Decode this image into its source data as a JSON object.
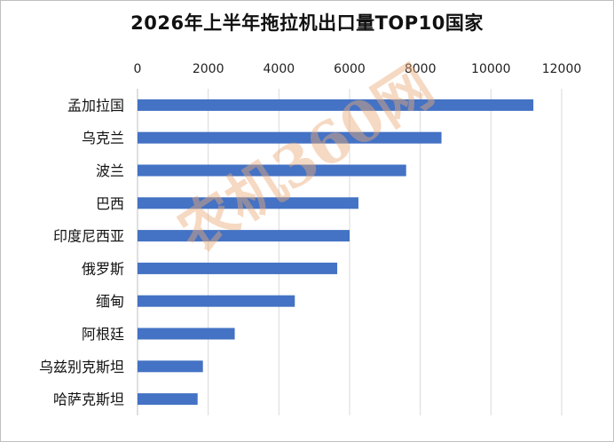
{
  "chart_data": {
    "type": "bar",
    "orientation": "horizontal",
    "title": "2026年上半年拖拉机出口量TOP10国家",
    "xlabel": "",
    "ylabel": "",
    "axis_position": "top",
    "xlim": [
      0,
      12000
    ],
    "ticks": [
      0,
      2000,
      4000,
      6000,
      8000,
      10000,
      12000
    ],
    "tick_labels": [
      "0",
      "2000",
      "4000",
      "6000",
      "8000",
      "10000",
      "12000"
    ],
    "categories": [
      "孟加拉国",
      "乌克兰",
      "波兰",
      "巴西",
      "印度尼西亚",
      "俄罗斯",
      "缅甸",
      "阿根廷",
      "乌兹别克斯坦",
      "哈萨克斯坦"
    ],
    "values": [
      11200,
      8600,
      7600,
      6250,
      6000,
      5650,
      4450,
      2750,
      1850,
      1700
    ],
    "bar_color": "#4472C4",
    "grid": true,
    "legend": "none"
  },
  "watermark": "农机360网"
}
